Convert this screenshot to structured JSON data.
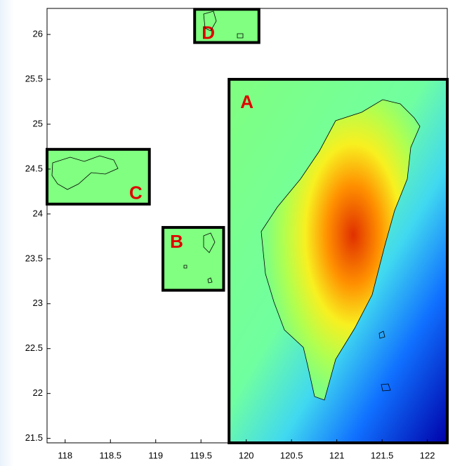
{
  "map": {
    "xlim": [
      117.8,
      122.22
    ],
    "ylim": [
      21.45,
      26.29
    ],
    "xticks": [
      118,
      118.5,
      119,
      119.5,
      120,
      120.5,
      121,
      121.5,
      122
    ],
    "yticks": [
      21.5,
      22,
      22.5,
      23,
      23.5,
      24,
      24.5,
      25,
      25.5,
      26
    ],
    "regions": [
      {
        "label": "A",
        "lon": [
          119.81,
          122.22
        ],
        "lat": [
          21.45,
          25.5
        ]
      },
      {
        "label": "B",
        "lon": [
          119.08,
          119.75
        ],
        "lat": [
          23.15,
          23.85
        ]
      },
      {
        "label": "C",
        "lon": [
          117.8,
          118.93
        ],
        "lat": [
          24.11,
          24.72
        ]
      },
      {
        "label": "D",
        "lon": [
          119.43,
          120.14
        ],
        "lat": [
          25.91,
          26.28
        ]
      }
    ]
  }
}
